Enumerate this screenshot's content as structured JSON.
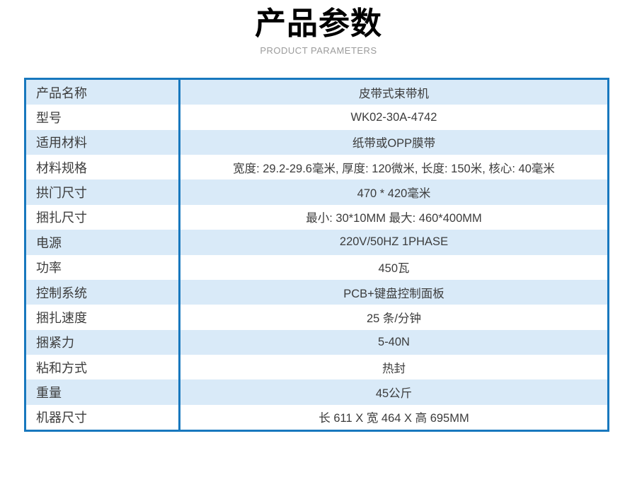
{
  "header": {
    "title": "产品参数",
    "subtitle": "PRODUCT PARAMETERS"
  },
  "table": {
    "rows": [
      {
        "label": "产品名称",
        "value": "皮带式束带机"
      },
      {
        "label": "型号",
        "value": "WK02-30A-4742"
      },
      {
        "label": "适用材料",
        "value": "纸带或OPP膜带"
      },
      {
        "label": "材料规格",
        "value": "宽度: 29.2-29.6毫米, 厚度: 120微米, 长度: 150米, 核心: 40毫米"
      },
      {
        "label": "拱门尺寸",
        "value": "470 * 420毫米"
      },
      {
        "label": "捆扎尺寸",
        "value": "最小: 30*10MM 最大: 460*400MM"
      },
      {
        "label": "电源",
        "value": "220V/50HZ 1PHASE"
      },
      {
        "label": "功率",
        "value": "450瓦"
      },
      {
        "label": "控制系统",
        "value": "PCB+键盘控制面板"
      },
      {
        "label": "捆扎速度",
        "value": "25 条/分钟"
      },
      {
        "label": "捆紧力",
        "value": "5-40N"
      },
      {
        "label": "粘和方式",
        "value": "热封"
      },
      {
        "label": "重量",
        "value": "45公斤"
      },
      {
        "label": "机器尺寸",
        "value": "长 611 X 宽 464 X 高 695MM"
      }
    ]
  },
  "colors": {
    "border_blue": "#1878be",
    "row_alt_blue": "#d9eaf8",
    "row_white": "#ffffff",
    "title_black": "#000000",
    "subtitle_gray": "#9b9b9b",
    "table_text": "#3c3c3c"
  }
}
